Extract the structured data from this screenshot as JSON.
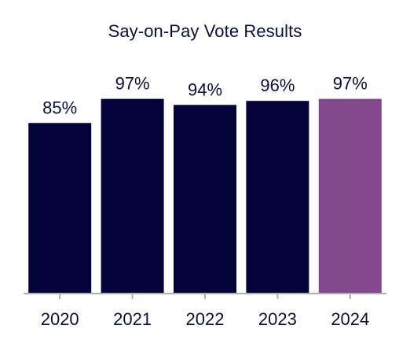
{
  "chart_data": {
    "type": "bar",
    "title": "Say-on-Pay Vote Results",
    "categories": [
      "2020",
      "2021",
      "2022",
      "2023",
      "2024"
    ],
    "values": [
      85,
      97,
      94,
      96,
      97
    ],
    "value_labels": [
      "85%",
      "97%",
      "94%",
      "96%",
      "97%"
    ],
    "value_unit": "%",
    "ylim": [
      0,
      100
    ],
    "xlabel": "",
    "ylabel": "",
    "grid": false,
    "legend": "none",
    "colors": {
      "default_bar": "#03033a",
      "highlight_bar": "#84488f",
      "axis": "#b0b0b0",
      "text": "#0d0d3a"
    },
    "highlight_category": "2024"
  }
}
